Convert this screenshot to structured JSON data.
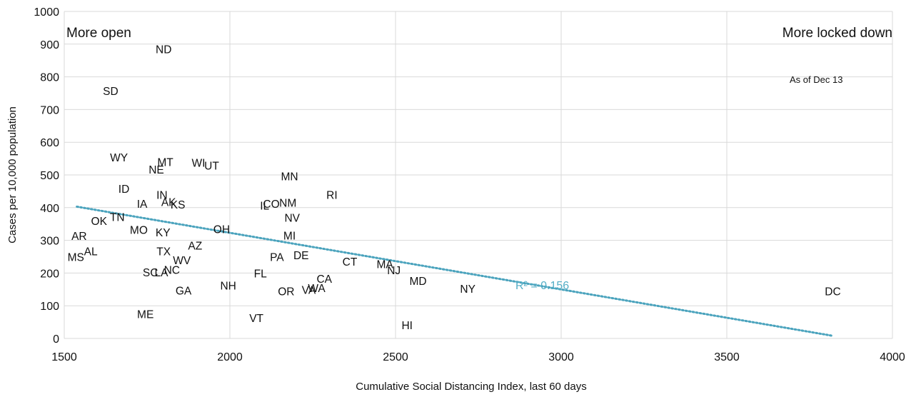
{
  "chart_data": {
    "type": "scatter",
    "xlabel": "Cumulative Social Distancing Index, last 60 days",
    "ylabel": "Cases per 10,000 population",
    "xlim": [
      1500,
      4000
    ],
    "ylim": [
      0,
      1000
    ],
    "x_ticks": [
      1500,
      2000,
      2500,
      3000,
      3500,
      4000
    ],
    "y_ticks": [
      0,
      100,
      200,
      300,
      400,
      500,
      600,
      700,
      800,
      900,
      1000
    ],
    "grid": true,
    "annotations": {
      "left_corner": "More open",
      "right_corner": "More locked down",
      "date_note": "As of Dec 13",
      "r_squared": "R² = 0.156"
    },
    "trendline": {
      "style": "dotted",
      "color": "#4aa3bd",
      "x": [
        1538,
        3820
      ],
      "y": [
        403,
        8
      ]
    },
    "points": [
      {
        "label": "ND",
        "x": 1800,
        "y": 885
      },
      {
        "label": "SD",
        "x": 1640,
        "y": 758
      },
      {
        "label": "WY",
        "x": 1665,
        "y": 555
      },
      {
        "label": "MT",
        "x": 1805,
        "y": 540
      },
      {
        "label": "NE",
        "x": 1778,
        "y": 517
      },
      {
        "label": "WI",
        "x": 1905,
        "y": 538
      },
      {
        "label": "UT",
        "x": 1945,
        "y": 530
      },
      {
        "label": "ID",
        "x": 1680,
        "y": 458
      },
      {
        "label": "IN",
        "x": 1795,
        "y": 440
      },
      {
        "label": "IA",
        "x": 1735,
        "y": 413
      },
      {
        "label": "AK",
        "x": 1815,
        "y": 418
      },
      {
        "label": "KS",
        "x": 1843,
        "y": 411
      },
      {
        "label": "OK",
        "x": 1605,
        "y": 360
      },
      {
        "label": "TN",
        "x": 1660,
        "y": 372
      },
      {
        "label": "MO",
        "x": 1725,
        "y": 333
      },
      {
        "label": "KY",
        "x": 1798,
        "y": 325
      },
      {
        "label": "OH",
        "x": 1975,
        "y": 335
      },
      {
        "label": "AZ",
        "x": 1895,
        "y": 285
      },
      {
        "label": "AR",
        "x": 1545,
        "y": 314
      },
      {
        "label": "AL",
        "x": 1580,
        "y": 267
      },
      {
        "label": "MS",
        "x": 1535,
        "y": 250
      },
      {
        "label": "TX",
        "x": 1800,
        "y": 268
      },
      {
        "label": "WV",
        "x": 1855,
        "y": 240
      },
      {
        "label": "SC",
        "x": 1760,
        "y": 203
      },
      {
        "label": "LA",
        "x": 1793,
        "y": 203
      },
      {
        "label": "NC",
        "x": 1825,
        "y": 211
      },
      {
        "label": "GA",
        "x": 1860,
        "y": 147
      },
      {
        "label": "ME",
        "x": 1745,
        "y": 75
      },
      {
        "label": "NH",
        "x": 1995,
        "y": 163
      },
      {
        "label": "VT",
        "x": 2080,
        "y": 63
      },
      {
        "label": "MN",
        "x": 2180,
        "y": 497
      },
      {
        "label": "CO",
        "x": 2125,
        "y": 413
      },
      {
        "label": "IL",
        "x": 2105,
        "y": 407
      },
      {
        "label": "NM",
        "x": 2175,
        "y": 416
      },
      {
        "label": "NV",
        "x": 2188,
        "y": 370
      },
      {
        "label": "MI",
        "x": 2180,
        "y": 315
      },
      {
        "label": "DE",
        "x": 2215,
        "y": 256
      },
      {
        "label": "PA",
        "x": 2142,
        "y": 250
      },
      {
        "label": "FL",
        "x": 2092,
        "y": 200
      },
      {
        "label": "OR",
        "x": 2170,
        "y": 145
      },
      {
        "label": "VA",
        "x": 2238,
        "y": 150
      },
      {
        "label": "WA",
        "x": 2262,
        "y": 155
      },
      {
        "label": "CA",
        "x": 2285,
        "y": 183
      },
      {
        "label": "RI",
        "x": 2308,
        "y": 440
      },
      {
        "label": "CT",
        "x": 2362,
        "y": 236
      },
      {
        "label": "MA",
        "x": 2468,
        "y": 228
      },
      {
        "label": "NJ",
        "x": 2495,
        "y": 210
      },
      {
        "label": "MD",
        "x": 2568,
        "y": 177
      },
      {
        "label": "NY",
        "x": 2718,
        "y": 153
      },
      {
        "label": "HI",
        "x": 2535,
        "y": 42
      },
      {
        "label": "DC",
        "x": 3820,
        "y": 145
      }
    ]
  }
}
